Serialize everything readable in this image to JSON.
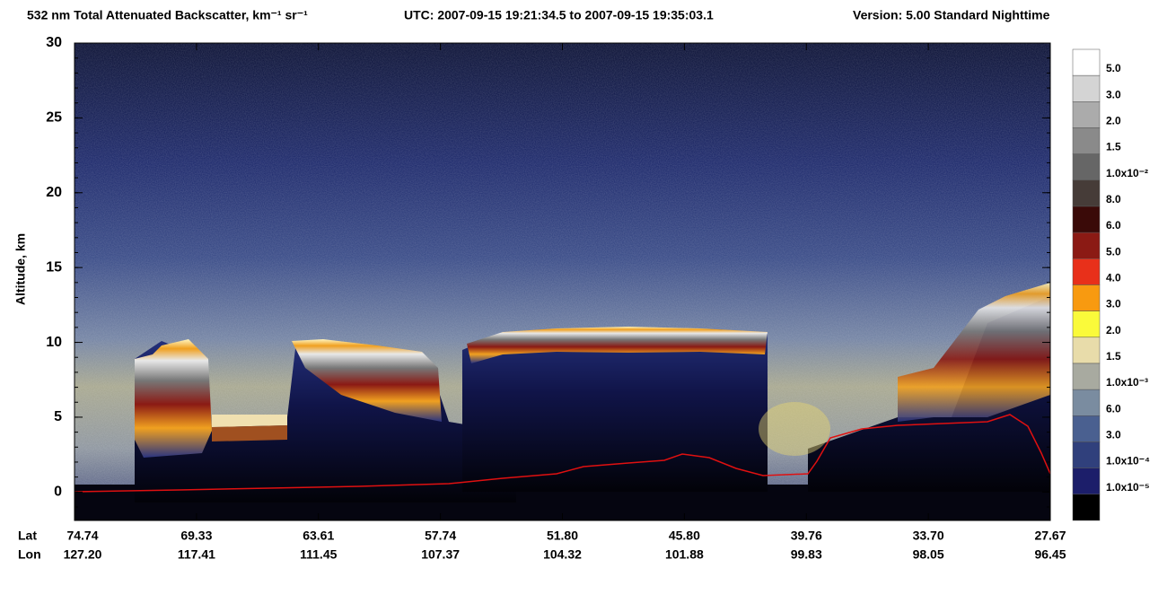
{
  "chart_data": {
    "type": "heatmap",
    "title": "532 nm Total Attenuated Backscatter, km⁻¹ sr⁻¹",
    "utc": "UTC:  2007-09-15 19:21:34.5  to  2007-09-15 19:35:03.1",
    "version": "Version: 5.00  Standard  Nighttime",
    "ylabel": "Altitude, km",
    "ylim": [
      -1.9,
      30
    ],
    "yticks": [
      0,
      5,
      10,
      15,
      20,
      25,
      30
    ],
    "x_rows": [
      {
        "label": "Lat",
        "values": [
          "74.74",
          "69.33",
          "63.61",
          "57.74",
          "51.80",
          "45.80",
          "39.76",
          "33.70",
          "27.67"
        ]
      },
      {
        "label": "Lon",
        "values": [
          "127.20",
          "117.41",
          "111.45",
          "107.37",
          "104.32",
          "101.88",
          "99.83",
          "98.05",
          "96.45"
        ]
      }
    ],
    "colorbar": {
      "labels": [
        "5.0",
        "3.0",
        "2.0",
        "1.5",
        "1.0x10⁻²",
        "8.0",
        "6.0",
        "5.0",
        "4.0",
        "3.0",
        "2.0",
        "1.5",
        "1.0x10⁻³",
        "6.0",
        "3.0",
        "1.0x10⁻⁴",
        "1.0x10⁻⁵"
      ],
      "colors": [
        "#ffffff",
        "#d4d4d4",
        "#ababab",
        "#8a8a8a",
        "#666666",
        "#463c38",
        "#3a0a08",
        "#8b1a14",
        "#e8301a",
        "#f89a10",
        "#fafa3a",
        "#e8dcaa",
        "#a8aaa0",
        "#7a8ca0",
        "#4a6090",
        "#30407c",
        "#1c1e6a",
        "#000000"
      ]
    }
  }
}
